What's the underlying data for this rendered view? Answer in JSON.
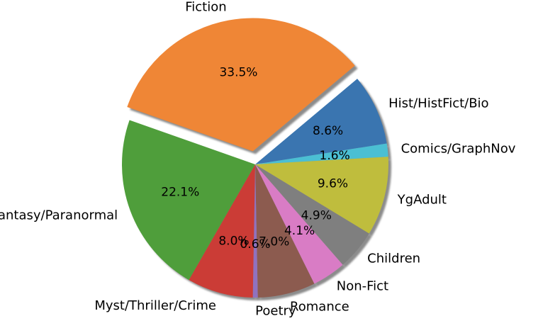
{
  "chart_data": {
    "type": "pie",
    "title": "",
    "start_angle_deg": 40,
    "direction": "clockwise",
    "shadow": true,
    "slices": [
      {
        "label": "Hist/HistFict/Bio",
        "value": 8.6,
        "pct_label": "8.6%",
        "color": "#3a75b0",
        "explode": 0
      },
      {
        "label": "Comics/GraphNov",
        "value": 1.6,
        "pct_label": "1.6%",
        "color": "#4bbfd3",
        "explode": 0
      },
      {
        "label": "YgAdult",
        "value": 9.6,
        "pct_label": "9.6%",
        "color": "#bfbd3d",
        "explode": 0
      },
      {
        "label": "Children",
        "value": 4.9,
        "pct_label": "4.9%",
        "color": "#7f7f7f",
        "explode": 0
      },
      {
        "label": "Non-Fict",
        "value": 4.1,
        "pct_label": "4.1%",
        "color": "#d97cc5",
        "explode": 0
      },
      {
        "label": "Romance",
        "value": 7.0,
        "pct_label": "7.0%",
        "color": "#8c5b4f",
        "explode": 0
      },
      {
        "label": "Poetry",
        "value": 0.6,
        "pct_label": "0.6%",
        "color": "#9072bf",
        "explode": 0
      },
      {
        "label": "Myst/Thriller/Crime",
        "value": 8.0,
        "pct_label": "8.0%",
        "color": "#cb3c36",
        "explode": 0
      },
      {
        "label": "Fantasy/Paranormal",
        "value": 22.1,
        "pct_label": "22.1%",
        "color": "#4f9e3b",
        "explode": 0
      },
      {
        "label": "Fiction",
        "value": 33.5,
        "pct_label": "33.5%",
        "color": "#ef8636",
        "explode": 0.1
      }
    ]
  }
}
